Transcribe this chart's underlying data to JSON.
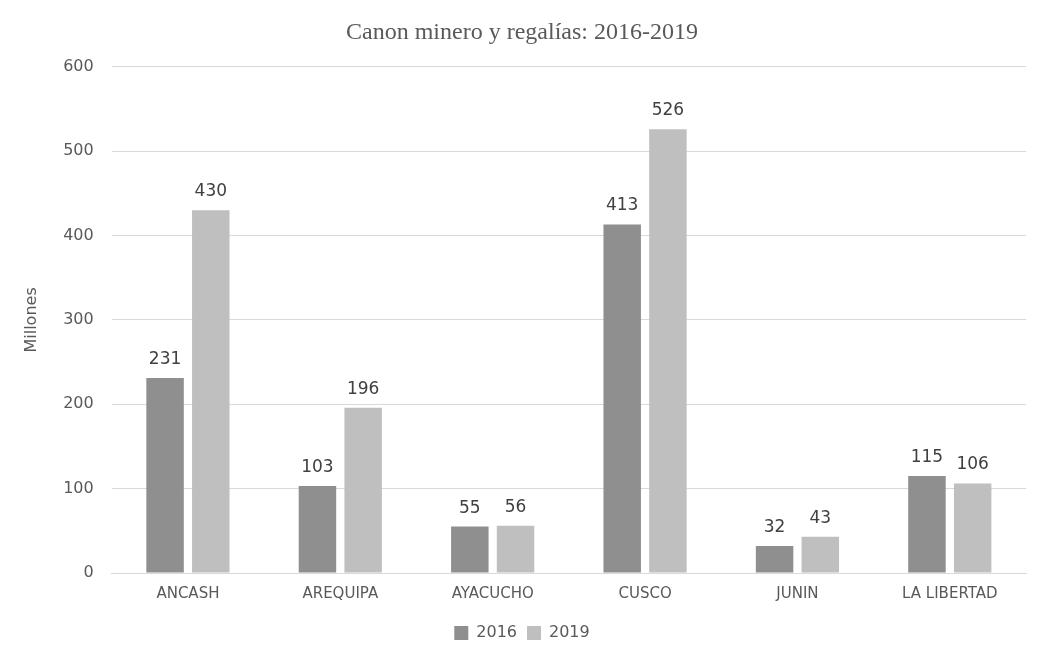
{
  "chart_data": {
    "type": "bar",
    "title": "Canon minero y regalías: 2016-2019",
    "ylabel": "Millones",
    "categories": [
      "ANCASH",
      "AREQUIPA",
      "AYACUCHO",
      "CUSCO",
      "JUNIN",
      "LA LIBERTAD"
    ],
    "series": [
      {
        "name": "2016",
        "color": "#8f8f8f",
        "values": [
          231,
          103,
          55,
          413,
          32,
          115
        ]
      },
      {
        "name": "2019",
        "color": "#bfbfbf",
        "values": [
          430,
          196,
          56,
          526,
          43,
          106
        ]
      }
    ],
    "ylim": [
      0,
      600
    ],
    "yticks": [
      0,
      100,
      200,
      300,
      400,
      500,
      600
    ],
    "grid": "y",
    "legend": "bottom",
    "data_labels": true
  }
}
